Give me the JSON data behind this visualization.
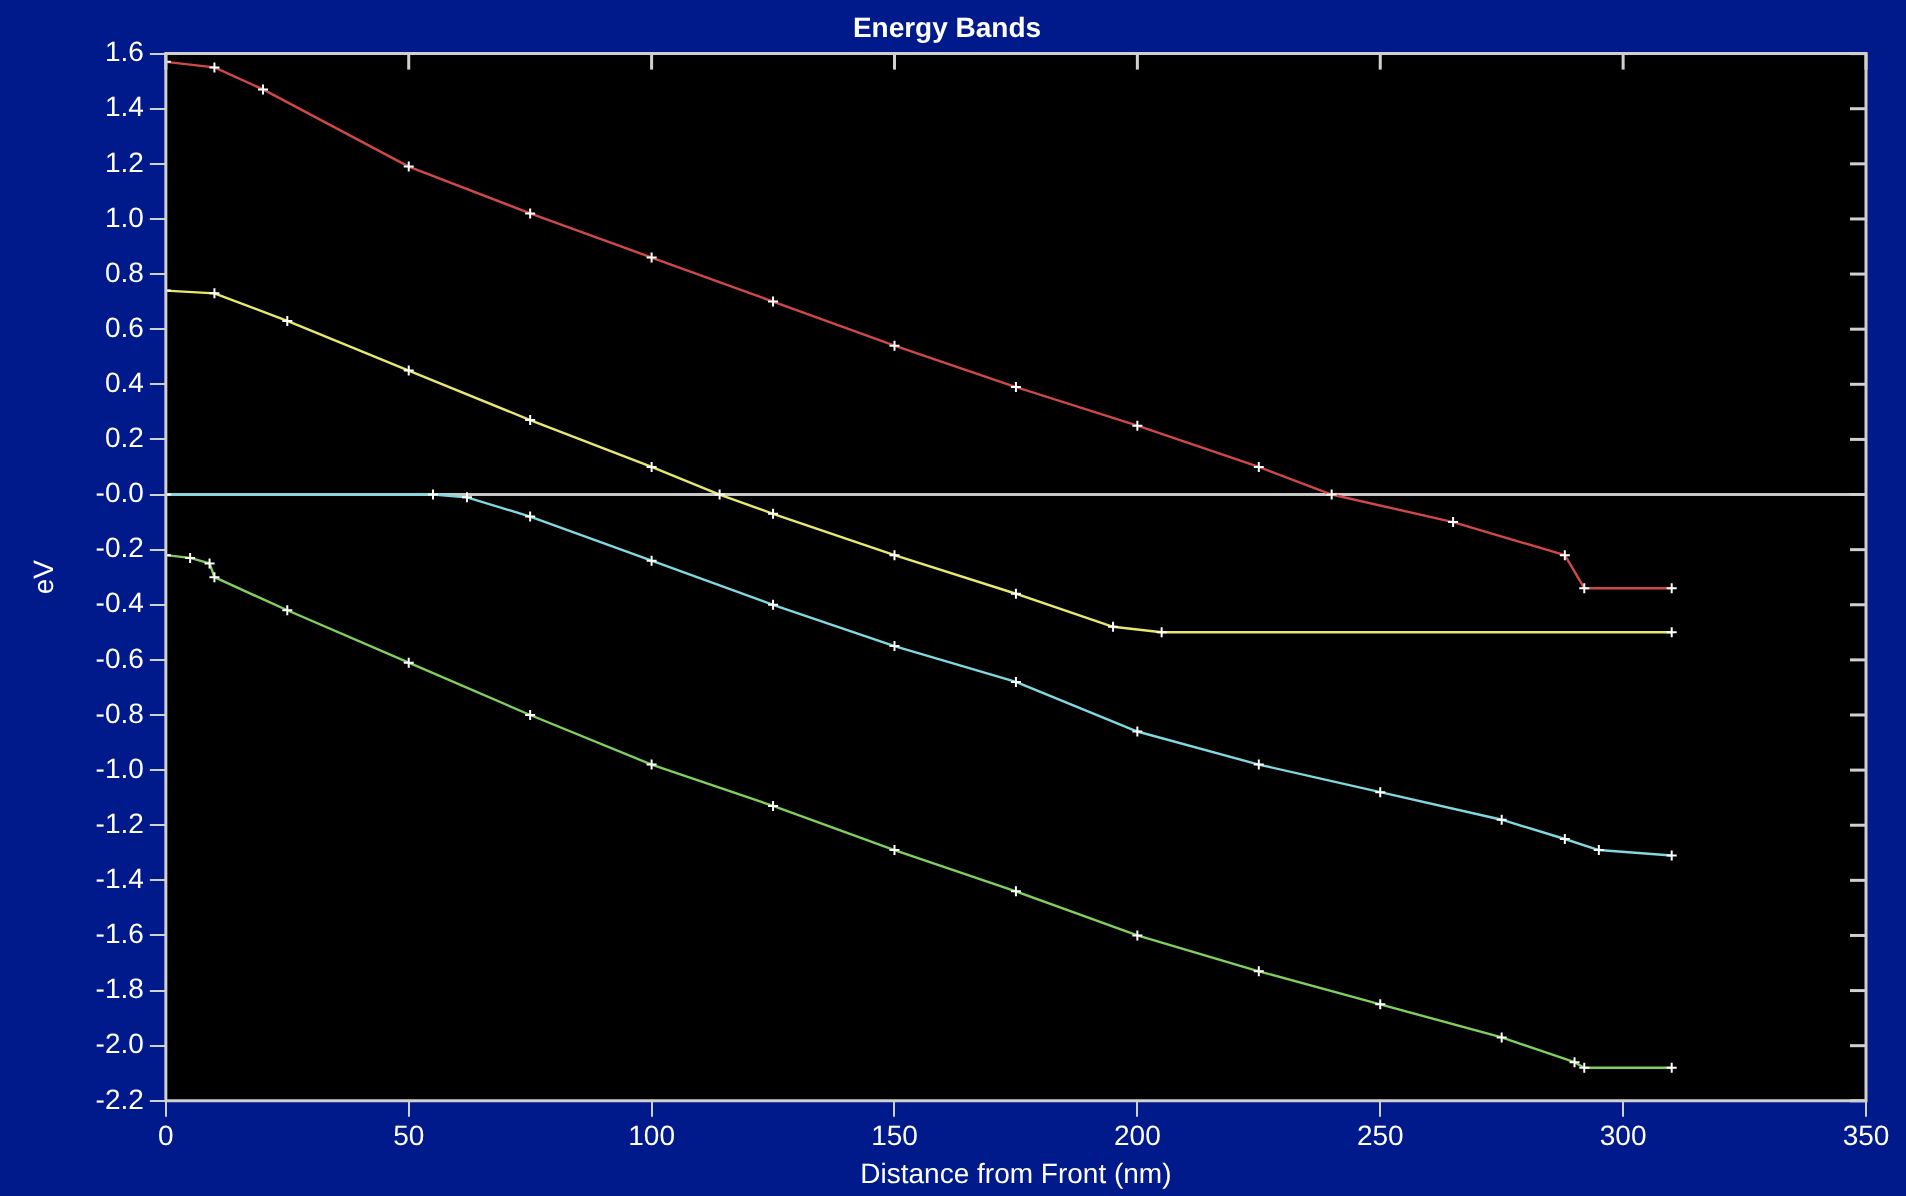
{
  "chart_data": {
    "type": "line",
    "title": "Energy Bands",
    "xlabel": "Distance from Front (nm)",
    "ylabel": "eV",
    "xlim": [
      0,
      350
    ],
    "xticks": [
      0,
      50,
      100,
      150,
      200,
      250,
      300,
      350
    ],
    "ylim": [
      -2.2,
      1.6
    ],
    "yticks": [
      -2.2,
      {
        "value": -2,
        "label": "-2.0"
      },
      -1.8,
      -1.6,
      -1.4,
      -1.2,
      {
        "value": -1,
        "label": "-1.0"
      },
      -0.8,
      -0.6,
      -0.4,
      -0.2,
      {
        "value": 0,
        "label": "-0.0"
      },
      0.2,
      0.4,
      0.6,
      0.8,
      {
        "value": 1,
        "label": "1.0"
      },
      1.2,
      1.4,
      1.6
    ],
    "grid": false,
    "legend": false,
    "marker": "cross",
    "line_style": "solid",
    "ref_lines": [
      {
        "axis": "y",
        "value": 0,
        "color": "#c8c8c8"
      }
    ],
    "series": [
      {
        "color": "#d04848",
        "x": [
          0,
          10,
          20,
          50,
          75,
          100,
          125,
          150,
          175,
          200,
          225,
          240,
          265,
          288,
          292,
          310
        ],
        "values": [
          1.57,
          1.55,
          1.47,
          1.19,
          1.02,
          0.86,
          0.7,
          0.54,
          0.39,
          0.25,
          0.1,
          0.0,
          -0.1,
          -0.22,
          -0.34,
          -0.34
        ]
      },
      {
        "color": "#e8e870",
        "x": [
          0,
          10,
          25,
          50,
          75,
          100,
          114,
          125,
          150,
          175,
          195,
          205,
          310
        ],
        "values": [
          0.74,
          0.73,
          0.63,
          0.45,
          0.27,
          0.1,
          0.0,
          -0.07,
          -0.22,
          -0.36,
          -0.48,
          -0.5,
          -0.5
        ]
      },
      {
        "color": "#80d8e0",
        "x": [
          0,
          55,
          62,
          75,
          100,
          125,
          150,
          175,
          200,
          225,
          250,
          275,
          288,
          295,
          310
        ],
        "values": [
          0,
          0,
          -0.01,
          -0.08,
          -0.24,
          -0.4,
          -0.55,
          -0.68,
          -0.86,
          -0.98,
          -1.08,
          -1.18,
          -1.25,
          -1.29,
          -1.31
        ]
      },
      {
        "color": "#80d060",
        "x": [
          0,
          5,
          9,
          10,
          25,
          50,
          75,
          100,
          125,
          150,
          175,
          200,
          225,
          250,
          275,
          290,
          292,
          310
        ],
        "values": [
          -0.22,
          -0.23,
          -0.25,
          -0.3,
          -0.42,
          -0.61,
          -0.8,
          -0.98,
          -1.13,
          -1.29,
          -1.44,
          -1.6,
          -1.73,
          -1.85,
          -1.97,
          -2.06,
          -2.08,
          -2.08
        ]
      }
    ]
  }
}
